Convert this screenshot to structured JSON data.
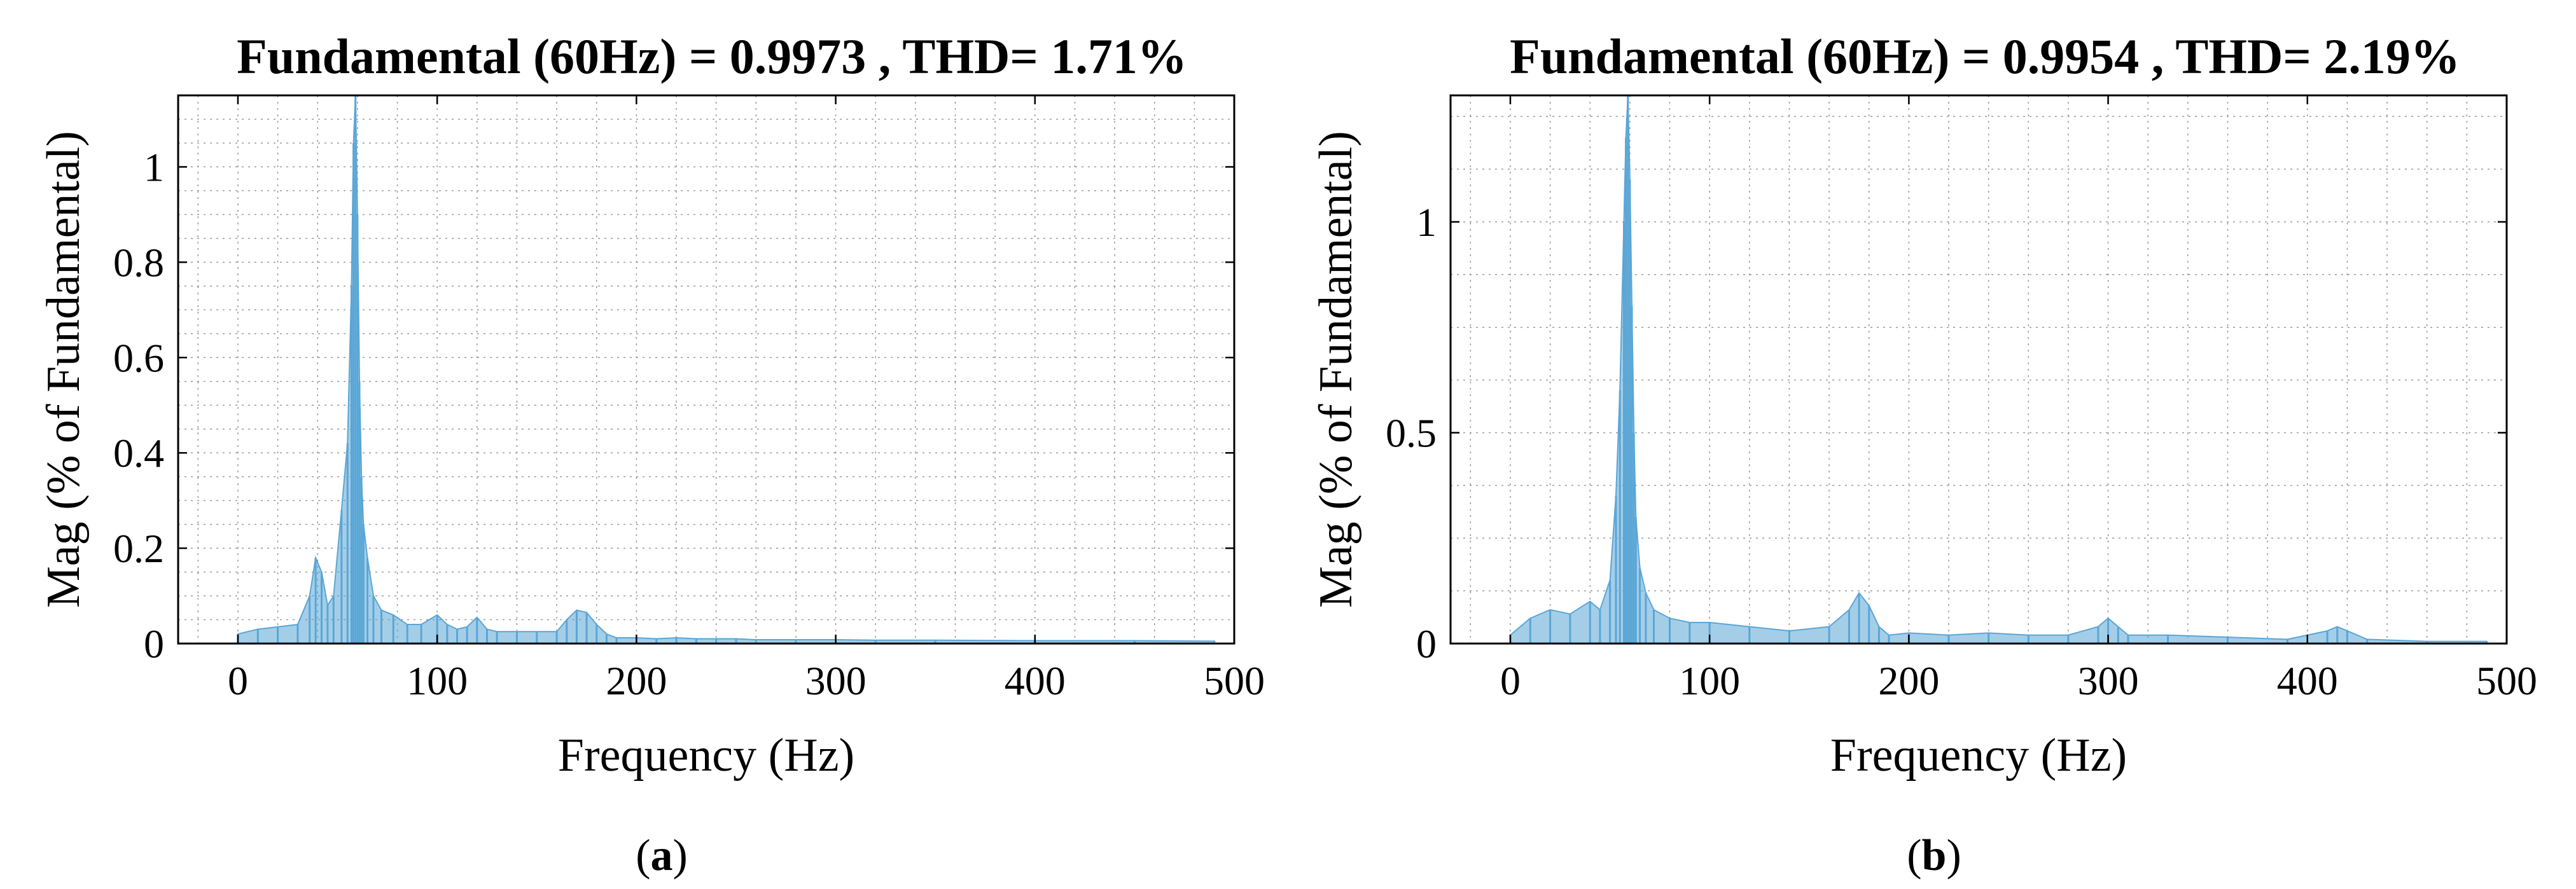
{
  "chart_data": [
    {
      "type": "area",
      "panel_label": "a",
      "title": "Fundamental (60Hz) = 0.9973 , THD= 1.71%",
      "xlabel": "Frequency (Hz)",
      "ylabel": "Mag (% of Fundamental)",
      "xlim": [
        -30,
        500
      ],
      "ylim": [
        0,
        1.15
      ],
      "xticks": [
        0,
        100,
        200,
        300,
        400,
        500
      ],
      "xtick_labels": [
        "0",
        "100",
        "200",
        "300",
        "400",
        "500"
      ],
      "yticks": [
        0,
        0.2,
        0.4,
        0.6,
        0.8,
        1
      ],
      "ytick_labels": [
        "0",
        "0.2",
        "0.4",
        "0.6",
        "0.8",
        "1"
      ],
      "grid": true,
      "color": "#5aa6d6",
      "series": [
        {
          "x": [
            0,
            10,
            20,
            30,
            36,
            39,
            42,
            45,
            48,
            52,
            55,
            57,
            58,
            59,
            60,
            61,
            62,
            63,
            65,
            68,
            72,
            78,
            85,
            92,
            100,
            105,
            110,
            115,
            120,
            125,
            130,
            140,
            150,
            160,
            165,
            170,
            175,
            180,
            185,
            190,
            200,
            210,
            220,
            230,
            240,
            250,
            260,
            280,
            300,
            320,
            350,
            400,
            450,
            490
          ],
          "y": [
            0.02,
            0.03,
            0.035,
            0.04,
            0.1,
            0.18,
            0.15,
            0.08,
            0.1,
            0.28,
            0.42,
            0.75,
            1.05,
            1.15,
            0.9,
            0.55,
            0.35,
            0.25,
            0.18,
            0.1,
            0.07,
            0.06,
            0.04,
            0.04,
            0.06,
            0.04,
            0.03,
            0.035,
            0.055,
            0.03,
            0.025,
            0.025,
            0.025,
            0.025,
            0.05,
            0.07,
            0.065,
            0.04,
            0.02,
            0.012,
            0.012,
            0.01,
            0.012,
            0.01,
            0.01,
            0.01,
            0.008,
            0.008,
            0.008,
            0.007,
            0.007,
            0.006,
            0.006,
            0.005
          ]
        }
      ]
    },
    {
      "type": "area",
      "panel_label": "b",
      "title": "Fundamental (60Hz) = 0.9954 , THD= 2.19%",
      "xlabel": "Frequency (Hz)",
      "ylabel": "Mag (% of Fundamental)",
      "xlim": [
        -30,
        500
      ],
      "ylim": [
        0,
        1.3
      ],
      "xticks": [
        0,
        100,
        200,
        300,
        400,
        500
      ],
      "xtick_labels": [
        "0",
        "100",
        "200",
        "300",
        "400",
        "500"
      ],
      "yticks": [
        0,
        0.5,
        1
      ],
      "ytick_labels": [
        "0",
        "0.5",
        "1"
      ],
      "grid": true,
      "color": "#5aa6d6",
      "series": [
        {
          "x": [
            0,
            10,
            20,
            30,
            40,
            45,
            50,
            53,
            55,
            57,
            58,
            59,
            60,
            61,
            62,
            63,
            65,
            68,
            72,
            80,
            90,
            100,
            120,
            140,
            160,
            170,
            175,
            180,
            185,
            190,
            200,
            220,
            240,
            260,
            280,
            295,
            300,
            305,
            310,
            330,
            360,
            390,
            410,
            415,
            420,
            430,
            460,
            490
          ],
          "y": [
            0.02,
            0.06,
            0.08,
            0.07,
            0.1,
            0.08,
            0.15,
            0.35,
            0.6,
            1.0,
            1.2,
            1.3,
            1.1,
            0.8,
            0.5,
            0.3,
            0.18,
            0.12,
            0.08,
            0.06,
            0.05,
            0.05,
            0.04,
            0.03,
            0.04,
            0.08,
            0.12,
            0.09,
            0.04,
            0.02,
            0.025,
            0.02,
            0.025,
            0.02,
            0.02,
            0.04,
            0.06,
            0.04,
            0.02,
            0.02,
            0.015,
            0.01,
            0.03,
            0.04,
            0.03,
            0.01,
            0.005,
            0.005
          ]
        }
      ]
    }
  ]
}
